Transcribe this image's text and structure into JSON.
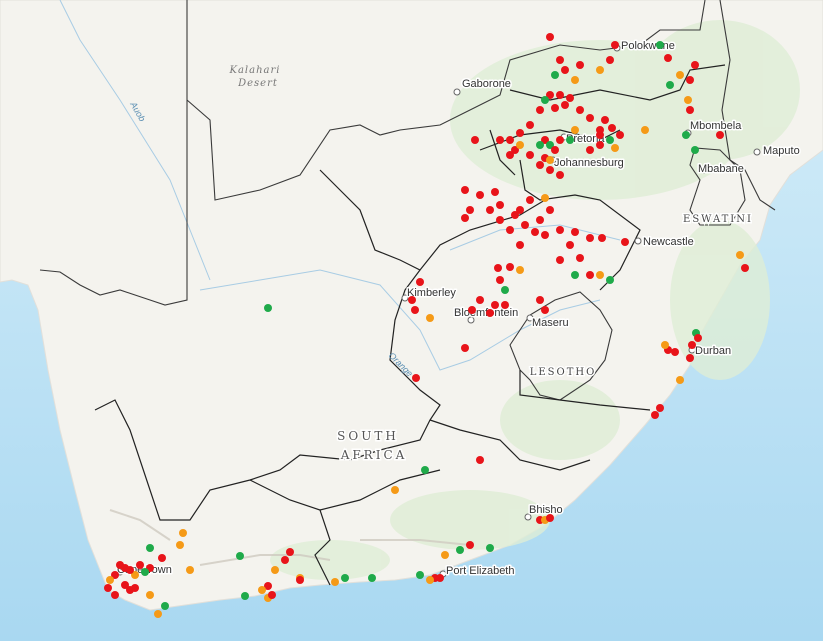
{
  "labels": {
    "kalahari_1": "Kalahari",
    "kalahari_2": "Desert",
    "auob": "Auob",
    "orange": "Orange",
    "south_1": "SOUTH",
    "south_2": "AFRICA",
    "lesotho": "LESOTHO",
    "eswatini": "ESWATINI",
    "gaborone": "Gaborone",
    "polokwane": "Polokwane",
    "pretoria": "Pretoria",
    "johannesburg": "Johannesburg",
    "mbombela": "Mbombela",
    "maputo": "Maputo",
    "mbabane": "Mbabane",
    "newcastle": "Newcastle",
    "kimberley": "Kimberley",
    "bloemfontein": "Bloemfontein",
    "maseru": "Maseru",
    "durban": "Durban",
    "bhisho": "Bhisho",
    "port_elizabeth": "Port Elizabeth",
    "cape_town": "Cape Town"
  },
  "colors": {
    "red": "#e8141a",
    "green": "#1faa4a",
    "orange": "#f59a17",
    "ocean": "#bfe3f5",
    "land": "#f4f3ef",
    "border": "#222222"
  }
}
